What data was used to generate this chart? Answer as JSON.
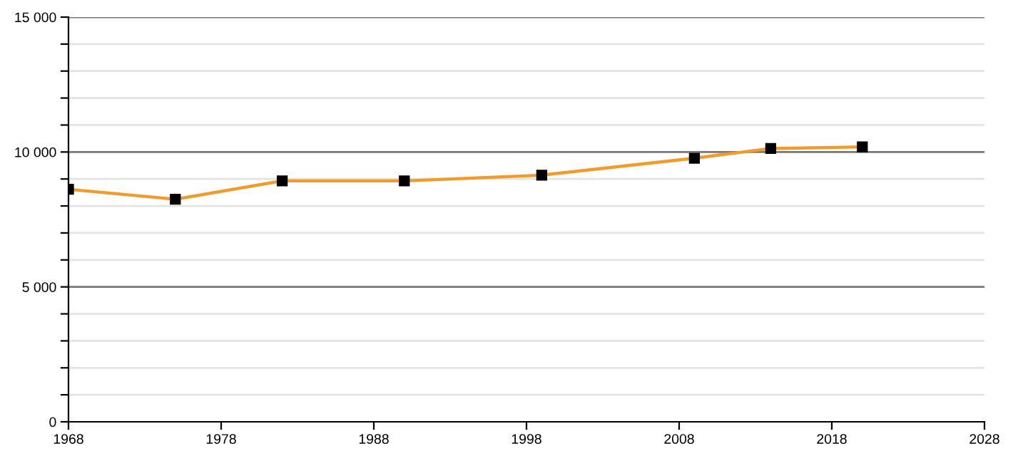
{
  "chart_data": {
    "type": "line",
    "x": [
      1968,
      1975,
      1982,
      1990,
      1999,
      2009,
      2014,
      2020
    ],
    "series": [
      {
        "color": "#f29b2a",
        "values": [
          8620,
          8250,
          8930,
          8930,
          9140,
          9770,
          10130,
          10190
        ]
      }
    ],
    "xlim": [
      1968,
      2028
    ],
    "xticks": [
      1968,
      1978,
      1988,
      1998,
      2008,
      2018,
      2028
    ],
    "ylim": [
      0,
      15000
    ],
    "yticks": [
      {
        "value": 0,
        "label": "0"
      },
      {
        "value": 1000,
        "label": null
      },
      {
        "value": 2000,
        "label": null
      },
      {
        "value": 3000,
        "label": null
      },
      {
        "value": 4000,
        "label": null
      },
      {
        "value": 5000,
        "label": "5 000"
      },
      {
        "value": 6000,
        "label": null
      },
      {
        "value": 7000,
        "label": null
      },
      {
        "value": 8000,
        "label": null
      },
      {
        "value": 9000,
        "label": null
      },
      {
        "value": 10000,
        "label": "10 000"
      },
      {
        "value": 11000,
        "label": null
      },
      {
        "value": 12000,
        "label": null
      },
      {
        "value": 13000,
        "label": null
      },
      {
        "value": 14000,
        "label": null
      },
      {
        "value": 15000,
        "label": "15 000"
      }
    ],
    "grid": "y",
    "marker": "square",
    "line_style": "solid",
    "legend": false
  }
}
